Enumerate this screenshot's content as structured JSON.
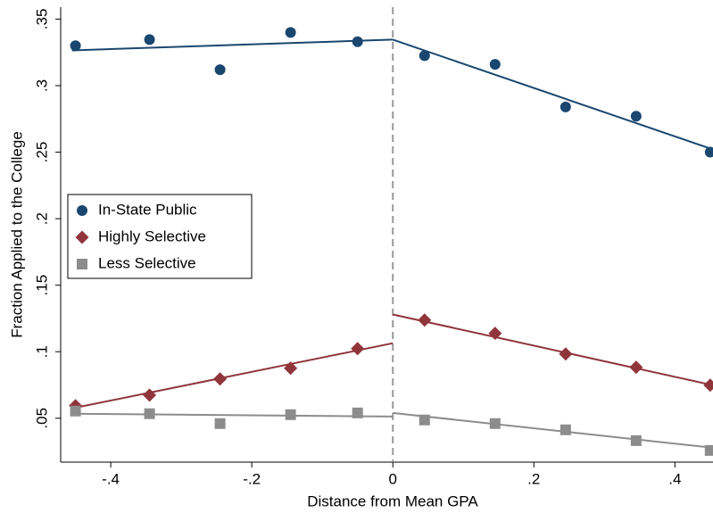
{
  "chart_data": {
    "type": "scatter",
    "x_label": "Distance from Mean GPA",
    "y_label": "Fraction Applied to the College",
    "xlim": [
      -0.471,
      0.454
    ],
    "ylim": [
      0.017,
      0.359
    ],
    "xticks": [
      {
        "value": -0.4,
        "label": "-.4"
      },
      {
        "value": -0.2,
        "label": "-.2"
      },
      0,
      {
        "value": 0.2,
        "label": ".2"
      },
      {
        "value": 0.4,
        "label": ".4"
      }
    ],
    "yticks": [
      {
        "value": 0.05,
        "label": ".05"
      },
      {
        "value": 0.1,
        "label": ".1"
      },
      {
        "value": 0.15,
        "label": ".15"
      },
      {
        "value": 0.2,
        "label": ".2"
      },
      {
        "value": 0.25,
        "label": ".25"
      },
      {
        "value": 0.3,
        "label": ".3"
      },
      {
        "value": 0.35,
        "label": ".35"
      }
    ],
    "cutoff": 0,
    "legend": "left",
    "series": [
      {
        "name": "In-State Public",
        "color": "#1a476f",
        "marker": "circle",
        "x": [
          -0.45,
          -0.345,
          -0.245,
          -0.145,
          -0.05,
          0.045,
          0.145,
          0.245,
          0.345,
          0.45
        ],
        "values": [
          0.33,
          0.3346,
          0.312,
          0.34,
          0.333,
          0.3225,
          0.316,
          0.284,
          0.277,
          0.25
        ],
        "fit": [
          {
            "x": [
              -0.455,
              0
            ],
            "values": [
              0.3265,
              0.3346
            ]
          },
          {
            "x": [
              0,
              0.454
            ],
            "values": [
              0.3346,
              0.252
            ]
          }
        ]
      },
      {
        "name": "Highly Selective",
        "color": "#90353b",
        "marker": "diamond",
        "x": [
          -0.45,
          -0.345,
          -0.245,
          -0.145,
          -0.05,
          0.045,
          0.145,
          0.245,
          0.345,
          0.45
        ],
        "values": [
          0.0594,
          0.0674,
          0.0795,
          0.0876,
          0.1023,
          0.1238,
          0.1138,
          0.0983,
          0.0883,
          0.0748
        ],
        "fit": [
          {
            "x": [
              -0.455,
              0
            ],
            "values": [
              0.0574,
              0.1064
            ]
          },
          {
            "x": [
              0,
              0.454
            ],
            "values": [
              0.128,
              0.0748
            ]
          }
        ]
      },
      {
        "name": "Less Selective",
        "color": "#8c8c8c",
        "marker": "square",
        "x": [
          -0.45,
          -0.345,
          -0.245,
          -0.145,
          -0.05,
          0.045,
          0.145,
          0.245,
          0.345,
          0.45
        ],
        "values": [
          0.0554,
          0.0534,
          0.046,
          0.0527,
          0.054,
          0.0487,
          0.046,
          0.0413,
          0.0332,
          0.0258
        ],
        "fit": [
          {
            "x": [
              -0.455,
              0
            ],
            "values": [
              0.0534,
              0.0513
            ]
          },
          {
            "x": [
              0,
              0.454
            ],
            "values": [
              0.054,
              0.0278
            ]
          }
        ]
      }
    ]
  }
}
